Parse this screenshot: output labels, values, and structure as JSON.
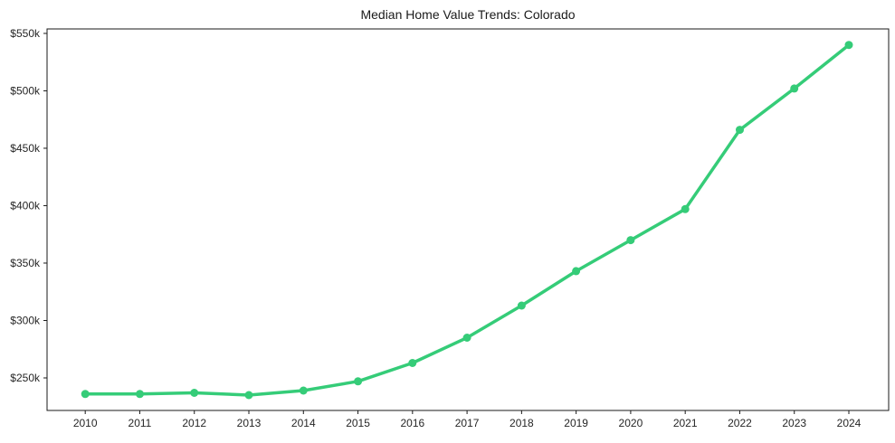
{
  "chart_data": {
    "type": "line",
    "title": "Median Home Value Trends: Colorado",
    "series": [
      {
        "name": "Median Home Value",
        "x": [
          2010,
          2011,
          2012,
          2013,
          2014,
          2015,
          2016,
          2017,
          2018,
          2019,
          2020,
          2021,
          2022,
          2023,
          2024
        ],
        "values": [
          236000,
          236000,
          237000,
          235000,
          239000,
          247000,
          263000,
          285000,
          313000,
          343000,
          370000,
          397000,
          466000,
          502000,
          540000
        ]
      }
    ],
    "xlabel": "",
    "ylabel": "",
    "xtick_labels": [
      "2010",
      "2011",
      "2012",
      "2013",
      "2014",
      "2015",
      "2016",
      "2017",
      "2018",
      "2019",
      "2020",
      "2021",
      "2022",
      "2023",
      "2024"
    ],
    "ytick_values": [
      250000,
      300000,
      350000,
      400000,
      450000,
      500000,
      550000
    ],
    "ytick_labels": [
      "$250k",
      "$300k",
      "$350k",
      "$400k",
      "$450k",
      "$500k",
      "$550k"
    ],
    "xlim": [
      2009.3,
      2024.73
    ],
    "ylim": [
      221650,
      553900
    ],
    "grid": false,
    "legend_position": "none",
    "marker": "circle",
    "colors": {
      "line": "#35cc78",
      "marker": "#35cc78",
      "spine": "#1a1a1a",
      "tick": "#1a1a1a",
      "text": "#262626",
      "background": "#ffffff"
    }
  }
}
